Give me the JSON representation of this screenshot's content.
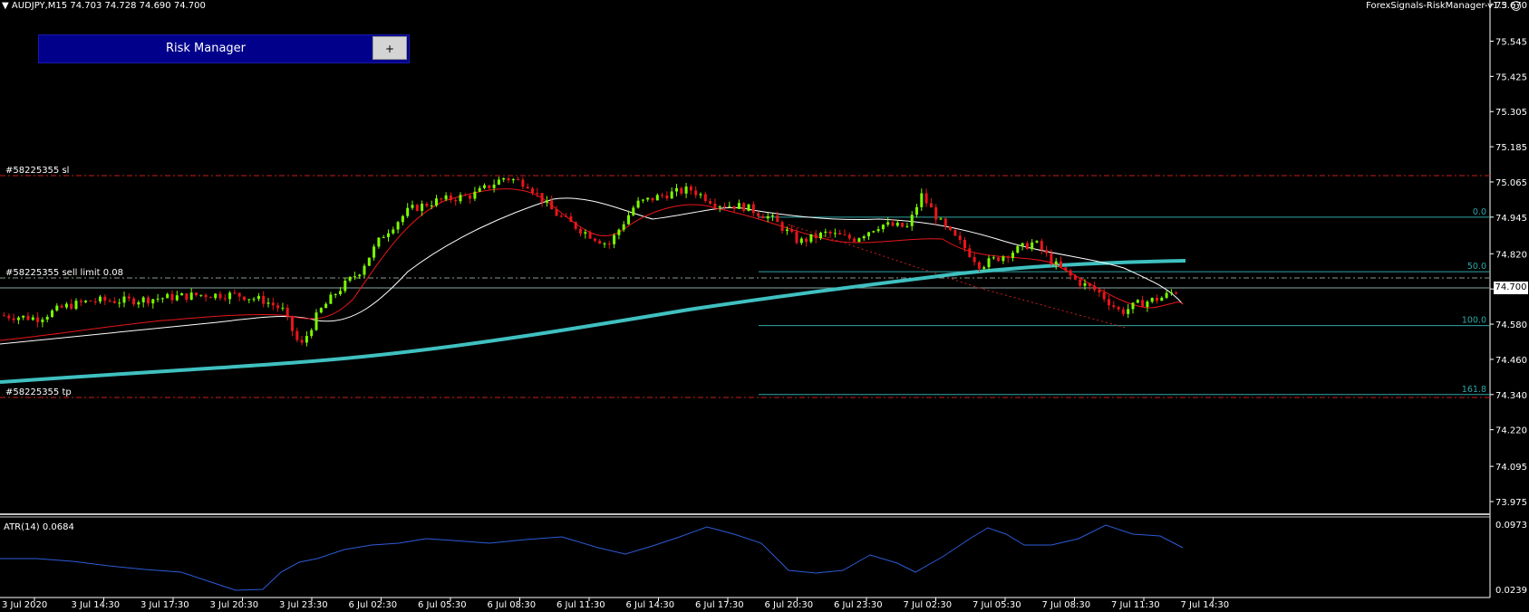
{
  "header": {
    "symbol_text": "AUDJPY,M15  74.703 74.728 74.690 74.700",
    "ea_name": "ForexSignals-RiskManager-v1.3",
    "smiley_icon": "smiley-icon"
  },
  "risk_manager": {
    "title": "Risk Manager",
    "plus_label": "+"
  },
  "current_price": "74.700",
  "trade_labels": {
    "sl": "#58225355 sl",
    "sell_limit": "#58225355 sell limit 0.08",
    "tp": "#58225355 tp"
  },
  "fib_levels": [
    {
      "label": "0.0",
      "price": 74.945
    },
    {
      "label": "50.0",
      "price": 74.759
    },
    {
      "label": "100.0",
      "price": 74.575
    },
    {
      "label": "161.8",
      "price": 74.34
    }
  ],
  "price_axis": [
    "75.670",
    "75.545",
    "75.425",
    "75.305",
    "75.185",
    "75.065",
    "74.945",
    "74.820",
    "74.700",
    "74.580",
    "74.460",
    "74.340",
    "74.220",
    "74.095",
    "73.975"
  ],
  "atr": {
    "label": "ATR(14) 0.0684",
    "axis_top": "0.0973",
    "axis_bottom": "0.0239"
  },
  "time_axis": [
    "3 Jul 2020",
    "3 Jul 14:30",
    "3 Jul 17:30",
    "3 Jul 20:30",
    "3 Jul 23:30",
    "6 Jul 02:30",
    "6 Jul 05:30",
    "6 Jul 08:30",
    "6 Jul 11:30",
    "6 Jul 14:30",
    "6 Jul 17:30",
    "6 Jul 20:30",
    "6 Jul 23:30",
    "7 Jul 02:30",
    "7 Jul 05:30",
    "7 Jul 08:30",
    "7 Jul 11:30",
    "7 Jul 14:30"
  ],
  "colors": {
    "bull": "#7cfc00",
    "bear": "#e8161a",
    "sl_line": "#c81e1e",
    "fib_line": "#2fa7a7",
    "ma_long": "#40c0c0",
    "atr_line": "#2d5bd8",
    "grid_line": "#ffffff"
  }
}
